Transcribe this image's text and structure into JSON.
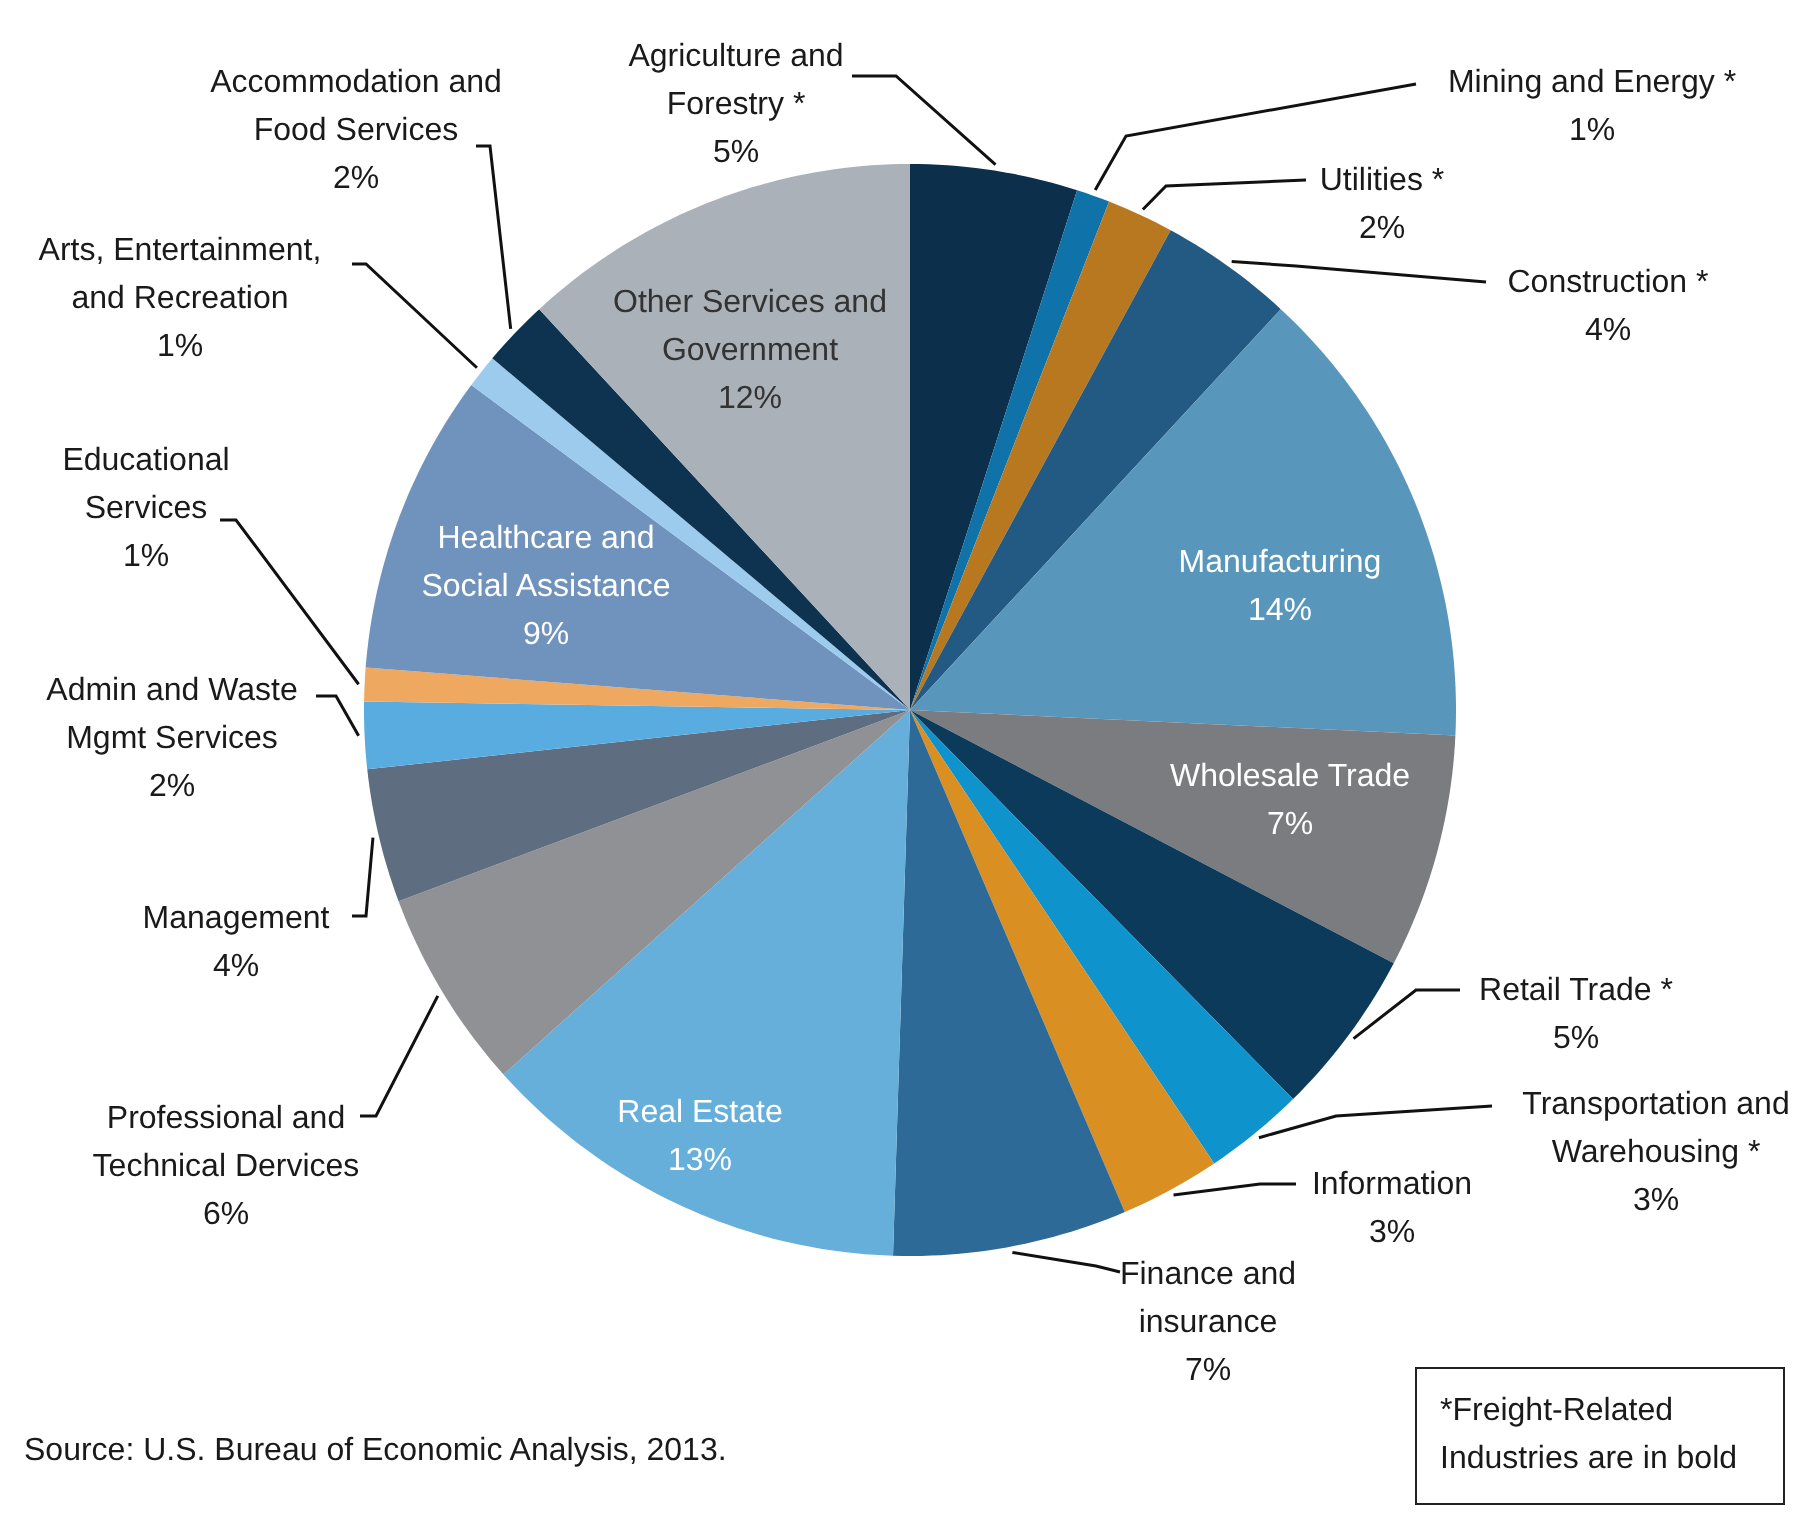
{
  "chart_data": {
    "type": "pie",
    "categories": [
      "Agriculture and Forestry *",
      "Mining and Energy *",
      "Utilities *",
      "Construction *",
      "Manufacturing",
      "Wholesale Trade",
      "Retail Trade *",
      "Transportation and Warehousing *",
      "Information",
      "Finance and insurance",
      "Real Estate",
      "Professional and Technical Dervices",
      "Management",
      "Admin and Waste Mgmt Services",
      "Educational Services",
      "Healthcare and Social Assistance",
      "Arts, Entertainment, and Recreation",
      "Accommodation and Food Services",
      "Other Services and Government"
    ],
    "values": [
      5,
      1,
      2,
      4,
      14,
      7,
      5,
      3,
      3,
      7,
      13,
      6,
      4,
      2,
      1,
      9,
      1,
      2,
      12
    ],
    "value_labels": [
      "5%",
      "1%",
      "2%",
      "4%",
      "14%",
      "7%",
      "5%",
      "3%",
      "3%",
      "7%",
      "13%",
      "6%",
      "4%",
      "2%",
      "1%",
      "9%",
      "1%",
      "2%",
      "12%"
    ],
    "colors": [
      "#0c2f4b",
      "#0f72a8",
      "#b8781f",
      "#235a83",
      "#5896bb",
      "#7a7c80",
      "#0c3a5a",
      "#0e93cd",
      "#d98f22",
      "#2d6a98",
      "#67afdb",
      "#8f9194",
      "#5e6e80",
      "#59ace0",
      "#efa860",
      "#6f93bc",
      "#9ccbee",
      "#0d3350",
      "#abb1b8"
    ],
    "annotations": [
      "Source: U.S. Bureau of Economic Analysis, 2013.",
      "*Freight-Related Industries are in bold"
    ]
  }
}
